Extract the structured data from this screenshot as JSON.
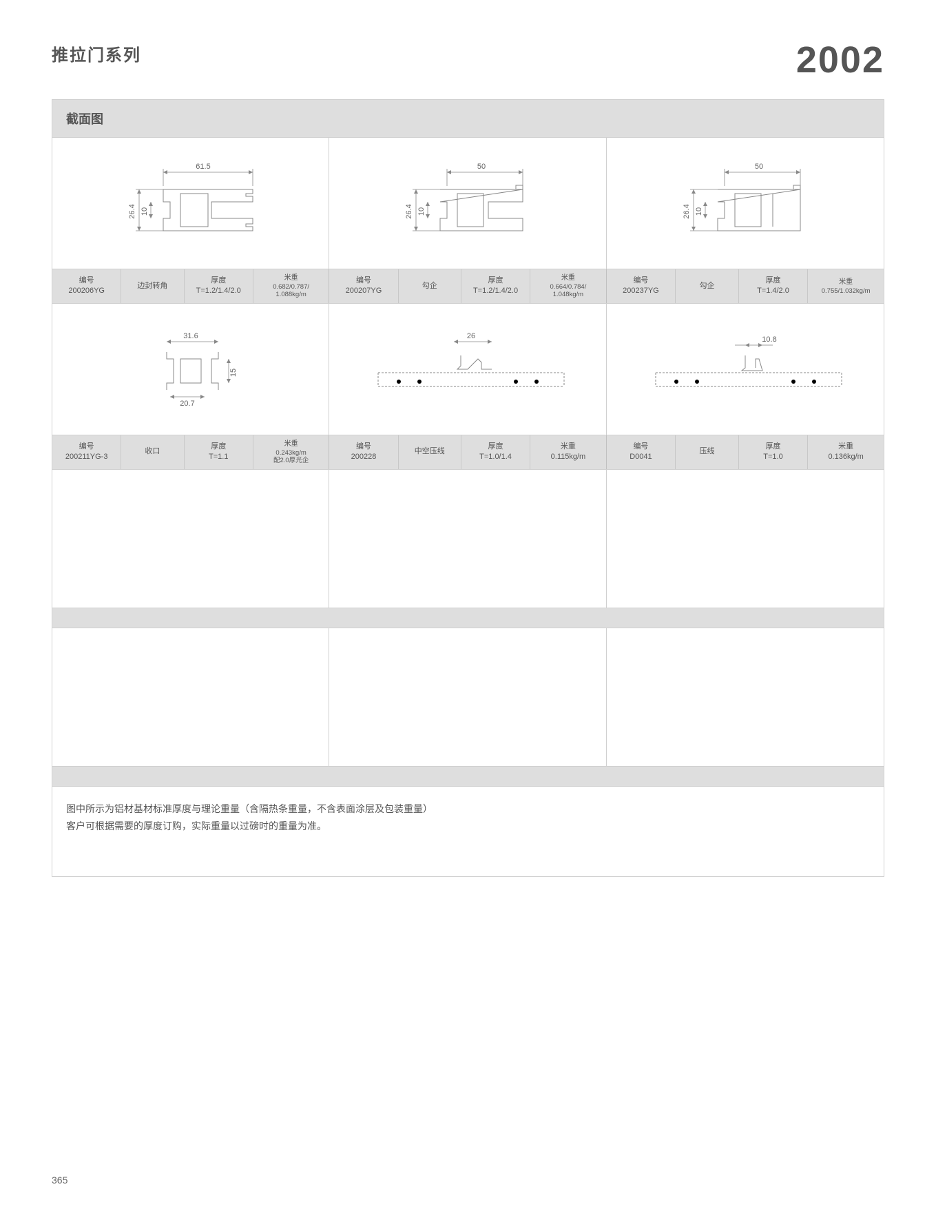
{
  "header": {
    "series_title": "推拉门系列",
    "year_code": "2002"
  },
  "section_header": "截面图",
  "labels": {
    "code": "编号",
    "thickness": "厚度",
    "weight_per_m": "米重"
  },
  "rows": [
    {
      "items": [
        {
          "diagram": {
            "type": "profile_a",
            "dims": {
              "w": "61.5",
              "h": "26.4",
              "inner": "10"
            }
          },
          "code": "200206YG",
          "name": "边封转角",
          "thickness": "T=1.2/1.4/2.0",
          "weight": "0.682/0.787/\n1.088kg/m"
        },
        {
          "diagram": {
            "type": "profile_b",
            "dims": {
              "w": "50",
              "h": "26.4",
              "inner": "10"
            }
          },
          "code": "200207YG",
          "name": "勾企",
          "thickness": "T=1.2/1.4/2.0",
          "weight": "0.664/0.784/\n1.048kg/m"
        },
        {
          "diagram": {
            "type": "profile_c",
            "dims": {
              "w": "50",
              "h": "26.4",
              "inner": "10"
            }
          },
          "code": "200237YG",
          "name": "勾企",
          "thickness": "T=1.4/2.0",
          "weight": "0.755/1.032kg/m"
        }
      ]
    },
    {
      "items": [
        {
          "diagram": {
            "type": "profile_d",
            "dims": {
              "w": "31.6",
              "h": "15",
              "bottom": "20.7"
            }
          },
          "code": "200211YG-3",
          "name": "收口",
          "thickness": "T=1.1",
          "weight": "0.243kg/m\n配2.0厚光企"
        },
        {
          "diagram": {
            "type": "profile_e",
            "dims": {
              "w": "26"
            }
          },
          "code": "200228",
          "name": "中空压线",
          "thickness": "T=1.0/1.4",
          "weight": "0.115kg/m"
        },
        {
          "diagram": {
            "type": "profile_f",
            "dims": {
              "w": "10.8"
            }
          },
          "code": "D0041",
          "name": "压线",
          "thickness": "T=1.0",
          "weight": "0.136kg/m"
        }
      ]
    }
  ],
  "footer_text": {
    "line1": "图中所示为铝材基材标准厚度与理论重量（含隔热条重量，不含表面涂层及包装重量）",
    "line2": "客户可根据需要的厚度订购，实际重量以过磅时的重量为准。"
  },
  "page_number": "365",
  "colors": {
    "bg_header": "#dedede",
    "border": "#d0d0d0",
    "text": "#555555",
    "stroke": "#888888"
  }
}
